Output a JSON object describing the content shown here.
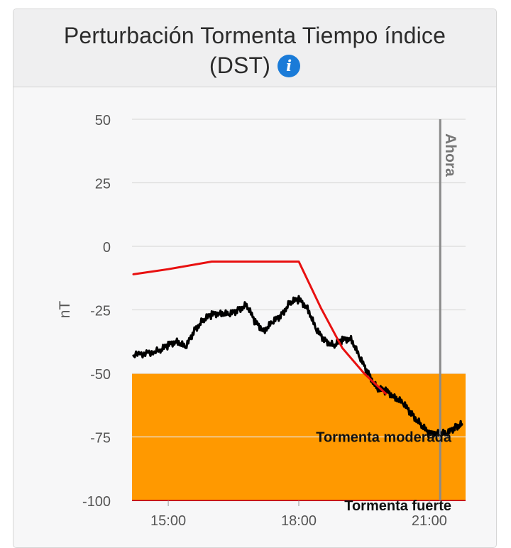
{
  "header": {
    "title_line1": "Perturbación Tormenta Tiempo índice",
    "title_line2": "(DST)",
    "info_icon": "info-icon"
  },
  "colors": {
    "storm_band": "#ff9900",
    "observed_line": "#000000",
    "forecast_line": "#e81010",
    "now_line": "#8a8a8a",
    "grid": "#dcdcdc"
  },
  "chart_data": {
    "type": "line",
    "title": "Perturbación Tormenta Tiempo índice (DST)",
    "ylabel": "nT",
    "xlabel": "",
    "ylim": [
      -100,
      50
    ],
    "xlim": [
      "14:10",
      "21:50"
    ],
    "y_ticks": [
      "50",
      "25",
      "0",
      "-25",
      "-50",
      "-75",
      "-100"
    ],
    "y_tick_values": [
      50,
      25,
      0,
      -25,
      -50,
      -75,
      -100
    ],
    "x_ticks": [
      "15:00",
      "18:00",
      "21:00"
    ],
    "x_tick_hours": [
      15,
      18,
      21
    ],
    "grid": true,
    "legend": "none",
    "now_marker": {
      "label": "Ahora",
      "hour": 21.25
    },
    "bands": [
      {
        "label": "Tormenta moderada",
        "from": -100,
        "to": -50
      },
      {
        "label": "Tormenta fuerte",
        "from": -100,
        "to": -100
      }
    ],
    "series": [
      {
        "x": [
          14.2,
          14.5,
          14.8,
          15.0,
          15.2,
          15.4,
          15.6,
          15.8,
          16.0,
          16.2,
          16.4,
          16.6,
          16.8,
          17.0,
          17.2,
          17.4,
          17.6,
          17.8,
          18.0,
          18.2,
          18.4,
          18.6,
          18.8,
          19.0,
          19.2,
          19.4,
          19.6,
          19.8,
          20.0,
          20.2,
          20.4,
          20.6,
          20.8,
          21.0,
          21.2,
          21.4,
          21.6,
          21.75
        ],
        "values": [
          -43,
          -42,
          -41,
          -39,
          -37,
          -40,
          -33,
          -29,
          -27,
          -26,
          -27,
          -25,
          -23,
          -30,
          -33,
          -30,
          -27,
          -22,
          -21,
          -24,
          -33,
          -37,
          -39,
          -37,
          -36,
          -44,
          -50,
          -56,
          -57,
          -59,
          -62,
          -66,
          -70,
          -74,
          -73,
          -74,
          -71,
          -70
        ]
      },
      {
        "x": [
          14.2,
          15.0,
          16.0,
          17.0,
          18.0,
          18.5,
          19.0,
          19.5,
          20.0
        ],
        "values": [
          -11,
          -9,
          -6,
          -6,
          -6,
          -24,
          -40,
          -50,
          -58
        ]
      }
    ]
  }
}
